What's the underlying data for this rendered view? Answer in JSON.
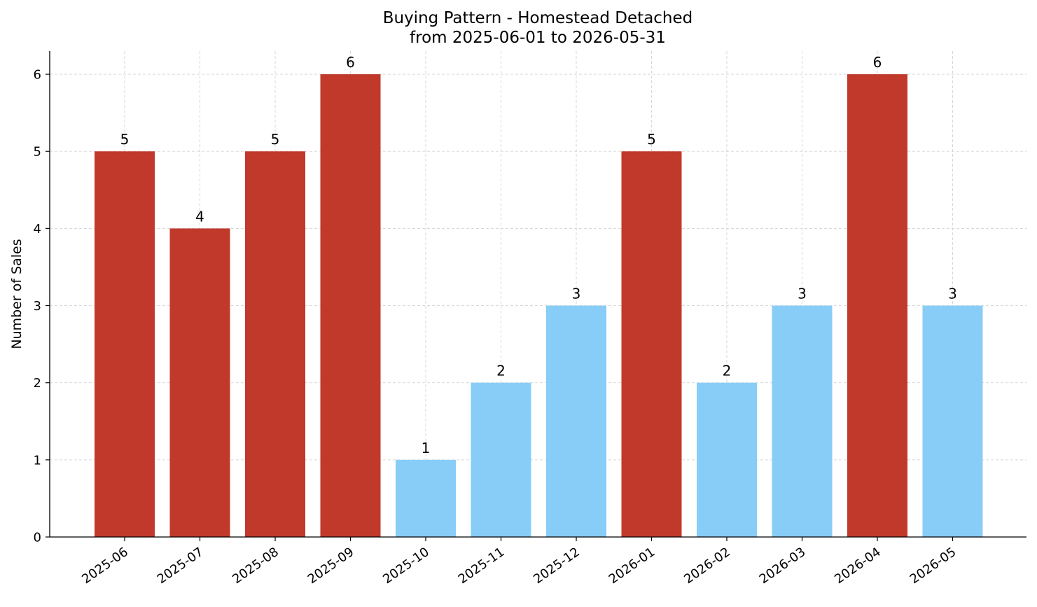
{
  "chart_data": {
    "type": "bar",
    "title": "Buying Pattern - Homestead Detached",
    "subtitle": "from 2025-06-01 to 2026-05-31",
    "xlabel": "",
    "ylabel": "Number of Sales",
    "categories": [
      "2025-06",
      "2025-07",
      "2025-08",
      "2025-09",
      "2025-10",
      "2025-11",
      "2025-12",
      "2026-01",
      "2026-02",
      "2026-03",
      "2026-04",
      "2026-05"
    ],
    "values": [
      5,
      4,
      5,
      6,
      1,
      2,
      3,
      5,
      2,
      3,
      6,
      3
    ],
    "colors": [
      "#c0392b",
      "#c0392b",
      "#c0392b",
      "#c0392b",
      "#87cdf7",
      "#87cdf7",
      "#87cdf7",
      "#c0392b",
      "#87cdf7",
      "#87cdf7",
      "#c0392b",
      "#87cdf7"
    ],
    "data_labels": [
      "5",
      "4",
      "5",
      "6",
      "1",
      "2",
      "3",
      "5",
      "2",
      "3",
      "6",
      "3"
    ],
    "ylim": [
      0,
      6.3
    ],
    "yticks": [
      "0",
      "1",
      "2",
      "3",
      "4",
      "5",
      "6"
    ],
    "grid": true,
    "legend": "none"
  }
}
